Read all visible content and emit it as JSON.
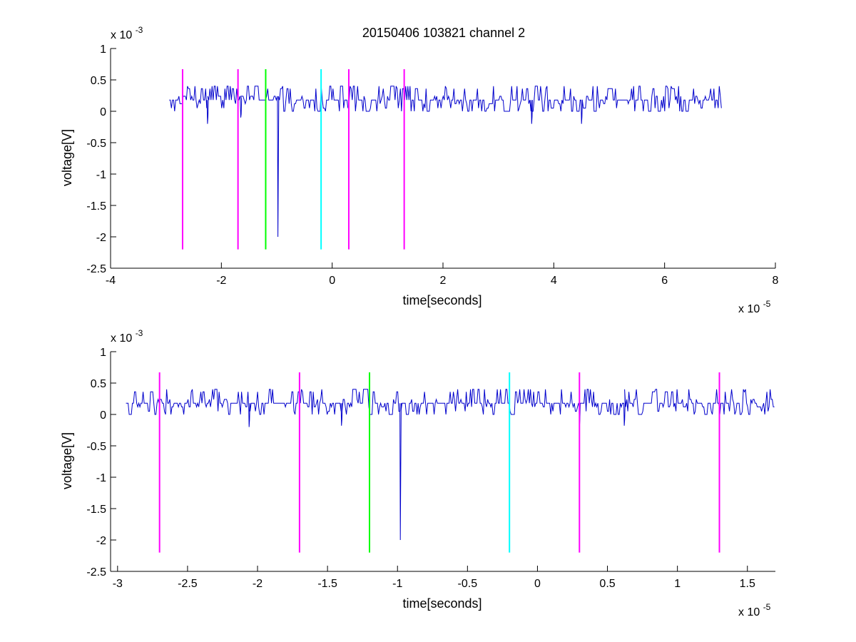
{
  "chart_data": [
    {
      "type": "line",
      "title": "20150406 103821 channel 2",
      "xlabel": "time[seconds]",
      "ylabel": "voltage[V]",
      "x_exponent_label": "x 10",
      "x_exponent": "-5",
      "y_exponent_label": "x 10",
      "y_exponent": "-3",
      "xlim": [
        -4e-05,
        8e-05
      ],
      "ylim": [
        -0.0025,
        0.001
      ],
      "x_ticks": [
        -4e-05,
        -2e-05,
        0,
        2e-05,
        4e-05,
        6e-05,
        8e-05
      ],
      "x_tick_labels": [
        "-4",
        "-2",
        "0",
        "2",
        "4",
        "6",
        "8"
      ],
      "y_ticks": [
        -0.0025,
        -0.002,
        -0.0015,
        -0.001,
        -0.0005,
        0,
        0.0005,
        0.001
      ],
      "y_tick_labels": [
        "-2.5",
        "-2",
        "-1.5",
        "-1",
        "-0.5",
        "0",
        "0.5",
        "1"
      ],
      "grid": false,
      "signal": {
        "color": "#0000cc",
        "x_range": [
          -2.94e-05,
          7.04e-05
        ],
        "baseline": 0.00018,
        "noise_levels": [
          0.0,
          0.00036,
          0.00018,
          0.00024,
          0.00012,
          0.0004,
          5e-05
        ],
        "spikes": [
          {
            "x": -9.8e-06,
            "y": -0.002
          },
          {
            "x": -2.25e-05,
            "y": -0.0002
          },
          {
            "x": 4.5e-05,
            "y": -0.0002
          },
          {
            "x": 3.6e-05,
            "y": -0.0002
          },
          {
            "x": -1.65e-05,
            "y": -0.0001
          }
        ]
      },
      "markers": [
        {
          "x": -2.7e-05,
          "color": "#ff00ff",
          "y_range": [
            -0.0022,
            0.00067
          ]
        },
        {
          "x": -1.7e-05,
          "color": "#ff00ff",
          "y_range": [
            -0.0022,
            0.00067
          ]
        },
        {
          "x": -1.2e-05,
          "color": "#00ff00",
          "y_range": [
            -0.0022,
            0.00067
          ]
        },
        {
          "x": -2e-06,
          "color": "#00ffff",
          "y_range": [
            -0.0022,
            0.00067
          ]
        },
        {
          "x": 3e-06,
          "color": "#ff00ff",
          "y_range": [
            -0.0022,
            0.00067
          ]
        },
        {
          "x": 1.3e-05,
          "color": "#ff00ff",
          "y_range": [
            -0.0022,
            0.00067
          ]
        }
      ]
    },
    {
      "type": "line",
      "title": "",
      "xlabel": "time[seconds]",
      "ylabel": "voltage[V]",
      "x_exponent_label": "x 10",
      "x_exponent": "-5",
      "y_exponent_label": "x 10",
      "y_exponent": "-3",
      "xlim": [
        -3.05e-05,
        1.7e-05
      ],
      "ylim": [
        -0.0025,
        0.001
      ],
      "x_ticks": [
        -3e-05,
        -2.5e-05,
        -2e-05,
        -1.5e-05,
        -1e-05,
        -5e-06,
        0,
        5e-06,
        1e-05,
        1.5e-05
      ],
      "x_tick_labels": [
        "-3",
        "-2.5",
        "-2",
        "-1.5",
        "-1",
        "-0.5",
        "0",
        "0.5",
        "1",
        "1.5"
      ],
      "y_ticks": [
        -0.0025,
        -0.002,
        -0.0015,
        -0.001,
        -0.0005,
        0,
        0.0005,
        0.001
      ],
      "y_tick_labels": [
        "-2.5",
        "-2",
        "-1.5",
        "-1",
        "-0.5",
        "0",
        "0.5",
        "1"
      ],
      "grid": false,
      "signal": {
        "color": "#0000cc",
        "x_range": [
          -2.94e-05,
          1.7e-05
        ],
        "baseline": 0.00018,
        "noise_levels": [
          0.0,
          0.00036,
          0.00018,
          0.00024,
          0.00012,
          0.0004,
          5e-05
        ],
        "spikes": [
          {
            "x": -9.8e-06,
            "y": -0.002
          },
          {
            "x": -2.06e-05,
            "y": -0.0002
          },
          {
            "x": -1.4e-05,
            "y": -0.00018
          },
          {
            "x": 3e-06,
            "y": -0.0002
          },
          {
            "x": 6.2e-06,
            "y": -0.00018
          }
        ]
      },
      "markers": [
        {
          "x": -2.7e-05,
          "color": "#ff00ff",
          "y_range": [
            -0.0022,
            0.00067
          ]
        },
        {
          "x": -1.7e-05,
          "color": "#ff00ff",
          "y_range": [
            -0.0022,
            0.00067
          ]
        },
        {
          "x": -1.2e-05,
          "color": "#00ff00",
          "y_range": [
            -0.0022,
            0.00067
          ]
        },
        {
          "x": -2e-06,
          "color": "#00ffff",
          "y_range": [
            -0.0022,
            0.00067
          ]
        },
        {
          "x": 3e-06,
          "color": "#ff00ff",
          "y_range": [
            -0.0022,
            0.00067
          ]
        },
        {
          "x": 1.3e-05,
          "color": "#ff00ff",
          "y_range": [
            -0.0022,
            0.00067
          ]
        }
      ]
    }
  ]
}
